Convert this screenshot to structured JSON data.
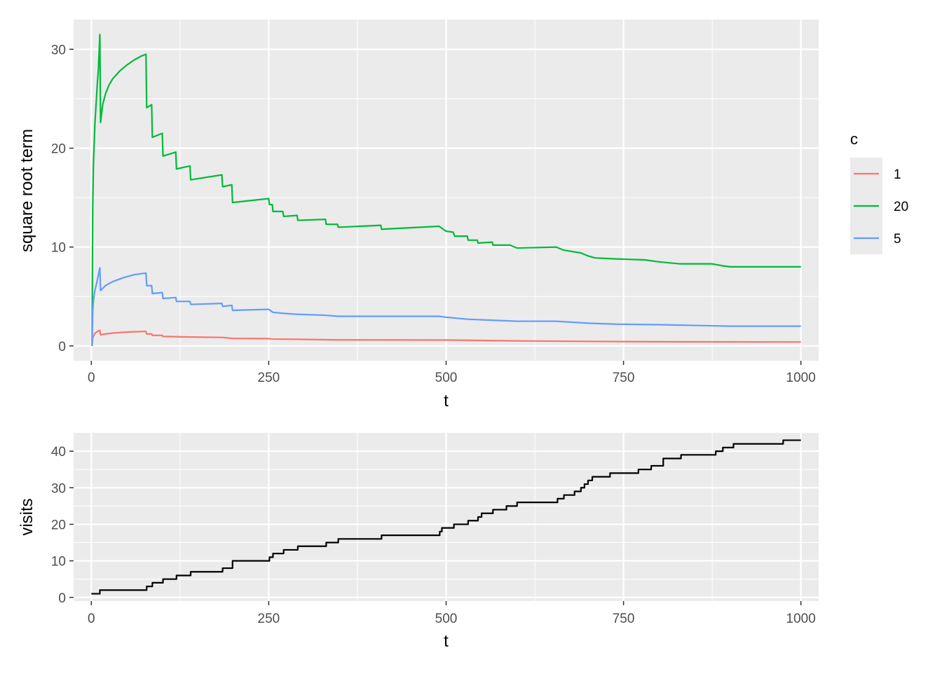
{
  "chart_data": [
    {
      "type": "line",
      "xlabel": "t",
      "ylabel": "square root term",
      "xlim": [
        -25,
        1025
      ],
      "ylim": [
        -1.5,
        33.0
      ],
      "x_ticks": [
        0,
        250,
        500,
        750,
        1000
      ],
      "x_tick_labels": [
        "0",
        "250",
        "500",
        "750",
        "1000"
      ],
      "y_ticks": [
        0,
        10,
        20,
        30
      ],
      "y_tick_labels": [
        "0",
        "10",
        "20",
        "30"
      ],
      "grid": true,
      "legend": {
        "title": "c",
        "position": "right"
      },
      "series": [
        {
          "name": "1",
          "color": "#F8766D",
          "points": [
            [
              1,
              0
            ],
            [
              2,
              0.83
            ],
            [
              5,
              1.27
            ],
            [
              8,
              1.44
            ],
            [
              12,
              1.58
            ],
            [
              13,
              1.13
            ],
            [
              20,
              1.21
            ],
            [
              30,
              1.3
            ],
            [
              45,
              1.38
            ],
            [
              60,
              1.43
            ],
            [
              77,
              1.47
            ],
            [
              78,
              1.21
            ],
            [
              85,
              1.21
            ],
            [
              86,
              1.07
            ],
            [
              100,
              1.07
            ],
            [
              101,
              0.96
            ],
            [
              140,
              0.9
            ],
            [
              185,
              0.86
            ],
            [
              200,
              0.76
            ],
            [
              250,
              0.74
            ],
            [
              255,
              0.7
            ],
            [
              300,
              0.66
            ],
            [
              350,
              0.61
            ],
            [
              500,
              0.6
            ],
            [
              600,
              0.51
            ],
            [
              700,
              0.46
            ],
            [
              800,
              0.42
            ],
            [
              1000,
              0.4
            ]
          ]
        },
        {
          "name": "20",
          "color": "#00BA38",
          "points": [
            [
              1,
              0
            ],
            [
              2,
              14.0
            ],
            [
              3,
              18.5
            ],
            [
              5,
              22.4
            ],
            [
              8,
              26.0
            ],
            [
              10,
              28.1
            ],
            [
              12,
              31.5
            ],
            [
              13,
              22.6
            ],
            [
              16,
              24.4
            ],
            [
              20,
              25.5
            ],
            [
              25,
              26.4
            ],
            [
              30,
              27.0
            ],
            [
              40,
              27.8
            ],
            [
              50,
              28.4
            ],
            [
              60,
              28.9
            ],
            [
              70,
              29.3
            ],
            [
              77,
              29.5
            ],
            [
              78,
              24.1
            ],
            [
              85,
              24.4
            ],
            [
              86,
              21.1
            ],
            [
              100,
              21.5
            ],
            [
              101,
              19.2
            ],
            [
              119,
              19.6
            ],
            [
              120,
              17.9
            ],
            [
              139,
              18.2
            ],
            [
              140,
              16.8
            ],
            [
              184,
              17.3
            ],
            [
              185,
              16.1
            ],
            [
              198,
              16.3
            ],
            [
              199,
              14.5
            ],
            [
              250,
              14.9
            ],
            [
              251,
              14.3
            ],
            [
              255,
              14.3
            ],
            [
              256,
              13.6
            ],
            [
              270,
              13.6
            ],
            [
              271,
              13.1
            ],
            [
              290,
              13.2
            ],
            [
              291,
              12.7
            ],
            [
              330,
              12.8
            ],
            [
              331,
              12.3
            ],
            [
              347,
              12.3
            ],
            [
              348,
              12.0
            ],
            [
              408,
              12.2
            ],
            [
              409,
              11.8
            ],
            [
              490,
              12.1
            ],
            [
              500,
              11.6
            ],
            [
              510,
              11.5
            ],
            [
              512,
              11.1
            ],
            [
              530,
              11.1
            ],
            [
              531,
              10.7
            ],
            [
              544,
              10.7
            ],
            [
              545,
              10.4
            ],
            [
              565,
              10.5
            ],
            [
              566,
              10.2
            ],
            [
              590,
              10.2
            ],
            [
              600,
              9.9
            ],
            [
              655,
              10.0
            ],
            [
              665,
              9.7
            ],
            [
              690,
              9.4
            ],
            [
              700,
              9.1
            ],
            [
              710,
              8.9
            ],
            [
              740,
              8.8
            ],
            [
              780,
              8.7
            ],
            [
              800,
              8.5
            ],
            [
              830,
              8.3
            ],
            [
              875,
              8.3
            ],
            [
              890,
              8.1
            ],
            [
              900,
              8.0
            ],
            [
              1000,
              8.0
            ]
          ]
        },
        {
          "name": "5",
          "color": "#619CFF",
          "points": [
            [
              1,
              0
            ],
            [
              2,
              3.6
            ],
            [
              3,
              4.6
            ],
            [
              5,
              5.6
            ],
            [
              8,
              6.5
            ],
            [
              12,
              7.9
            ],
            [
              13,
              5.6
            ],
            [
              20,
              6.1
            ],
            [
              30,
              6.5
            ],
            [
              45,
              6.9
            ],
            [
              60,
              7.2
            ],
            [
              77,
              7.37
            ],
            [
              78,
              6.1
            ],
            [
              85,
              6.1
            ],
            [
              86,
              5.3
            ],
            [
              100,
              5.4
            ],
            [
              101,
              4.8
            ],
            [
              119,
              4.9
            ],
            [
              120,
              4.5
            ],
            [
              139,
              4.5
            ],
            [
              140,
              4.2
            ],
            [
              184,
              4.3
            ],
            [
              185,
              4.0
            ],
            [
              198,
              4.1
            ],
            [
              199,
              3.6
            ],
            [
              250,
              3.7
            ],
            [
              256,
              3.4
            ],
            [
              270,
              3.3
            ],
            [
              290,
              3.2
            ],
            [
              330,
              3.1
            ],
            [
              348,
              3.0
            ],
            [
              408,
              3.0
            ],
            [
              490,
              3.0
            ],
            [
              500,
              2.9
            ],
            [
              530,
              2.7
            ],
            [
              565,
              2.6
            ],
            [
              600,
              2.5
            ],
            [
              655,
              2.5
            ],
            [
              700,
              2.3
            ],
            [
              740,
              2.2
            ],
            [
              800,
              2.15
            ],
            [
              900,
              2.0
            ],
            [
              1000,
              2.0
            ]
          ]
        }
      ]
    },
    {
      "type": "line",
      "xlabel": "t",
      "ylabel": "visits",
      "xlim": [
        -25,
        1025
      ],
      "ylim": [
        -1.0,
        45.0
      ],
      "x_ticks": [
        0,
        250,
        500,
        750,
        1000
      ],
      "x_tick_labels": [
        "0",
        "250",
        "500",
        "750",
        "1000"
      ],
      "y_ticks": [
        0,
        10,
        20,
        30,
        40
      ],
      "y_tick_labels": [
        "0",
        "10",
        "20",
        "30",
        "40"
      ],
      "grid": true,
      "series": [
        {
          "color": "#000000",
          "steps": [
            [
              0,
              1
            ],
            [
              12,
              2
            ],
            [
              78,
              3
            ],
            [
              86,
              4
            ],
            [
              101,
              5
            ],
            [
              120,
              6
            ],
            [
              140,
              7
            ],
            [
              185,
              8
            ],
            [
              199,
              10
            ],
            [
              251,
              11
            ],
            [
              256,
              12
            ],
            [
              271,
              13
            ],
            [
              291,
              14
            ],
            [
              331,
              15
            ],
            [
              348,
              16
            ],
            [
              409,
              17
            ],
            [
              491,
              18
            ],
            [
              494,
              19
            ],
            [
              511,
              20
            ],
            [
              531,
              21
            ],
            [
              545,
              22
            ],
            [
              550,
              23
            ],
            [
              566,
              24
            ],
            [
              585,
              25
            ],
            [
              600,
              26
            ],
            [
              657,
              27
            ],
            [
              666,
              28
            ],
            [
              681,
              29
            ],
            [
              690,
              30
            ],
            [
              695,
              31
            ],
            [
              700,
              32
            ],
            [
              706,
              33
            ],
            [
              731,
              34
            ],
            [
              771,
              35
            ],
            [
              789,
              36
            ],
            [
              806,
              38
            ],
            [
              831,
              39
            ],
            [
              880,
              40
            ],
            [
              890,
              41
            ],
            [
              905,
              42
            ],
            [
              975,
              43
            ],
            [
              1000,
              43
            ]
          ]
        }
      ]
    }
  ]
}
